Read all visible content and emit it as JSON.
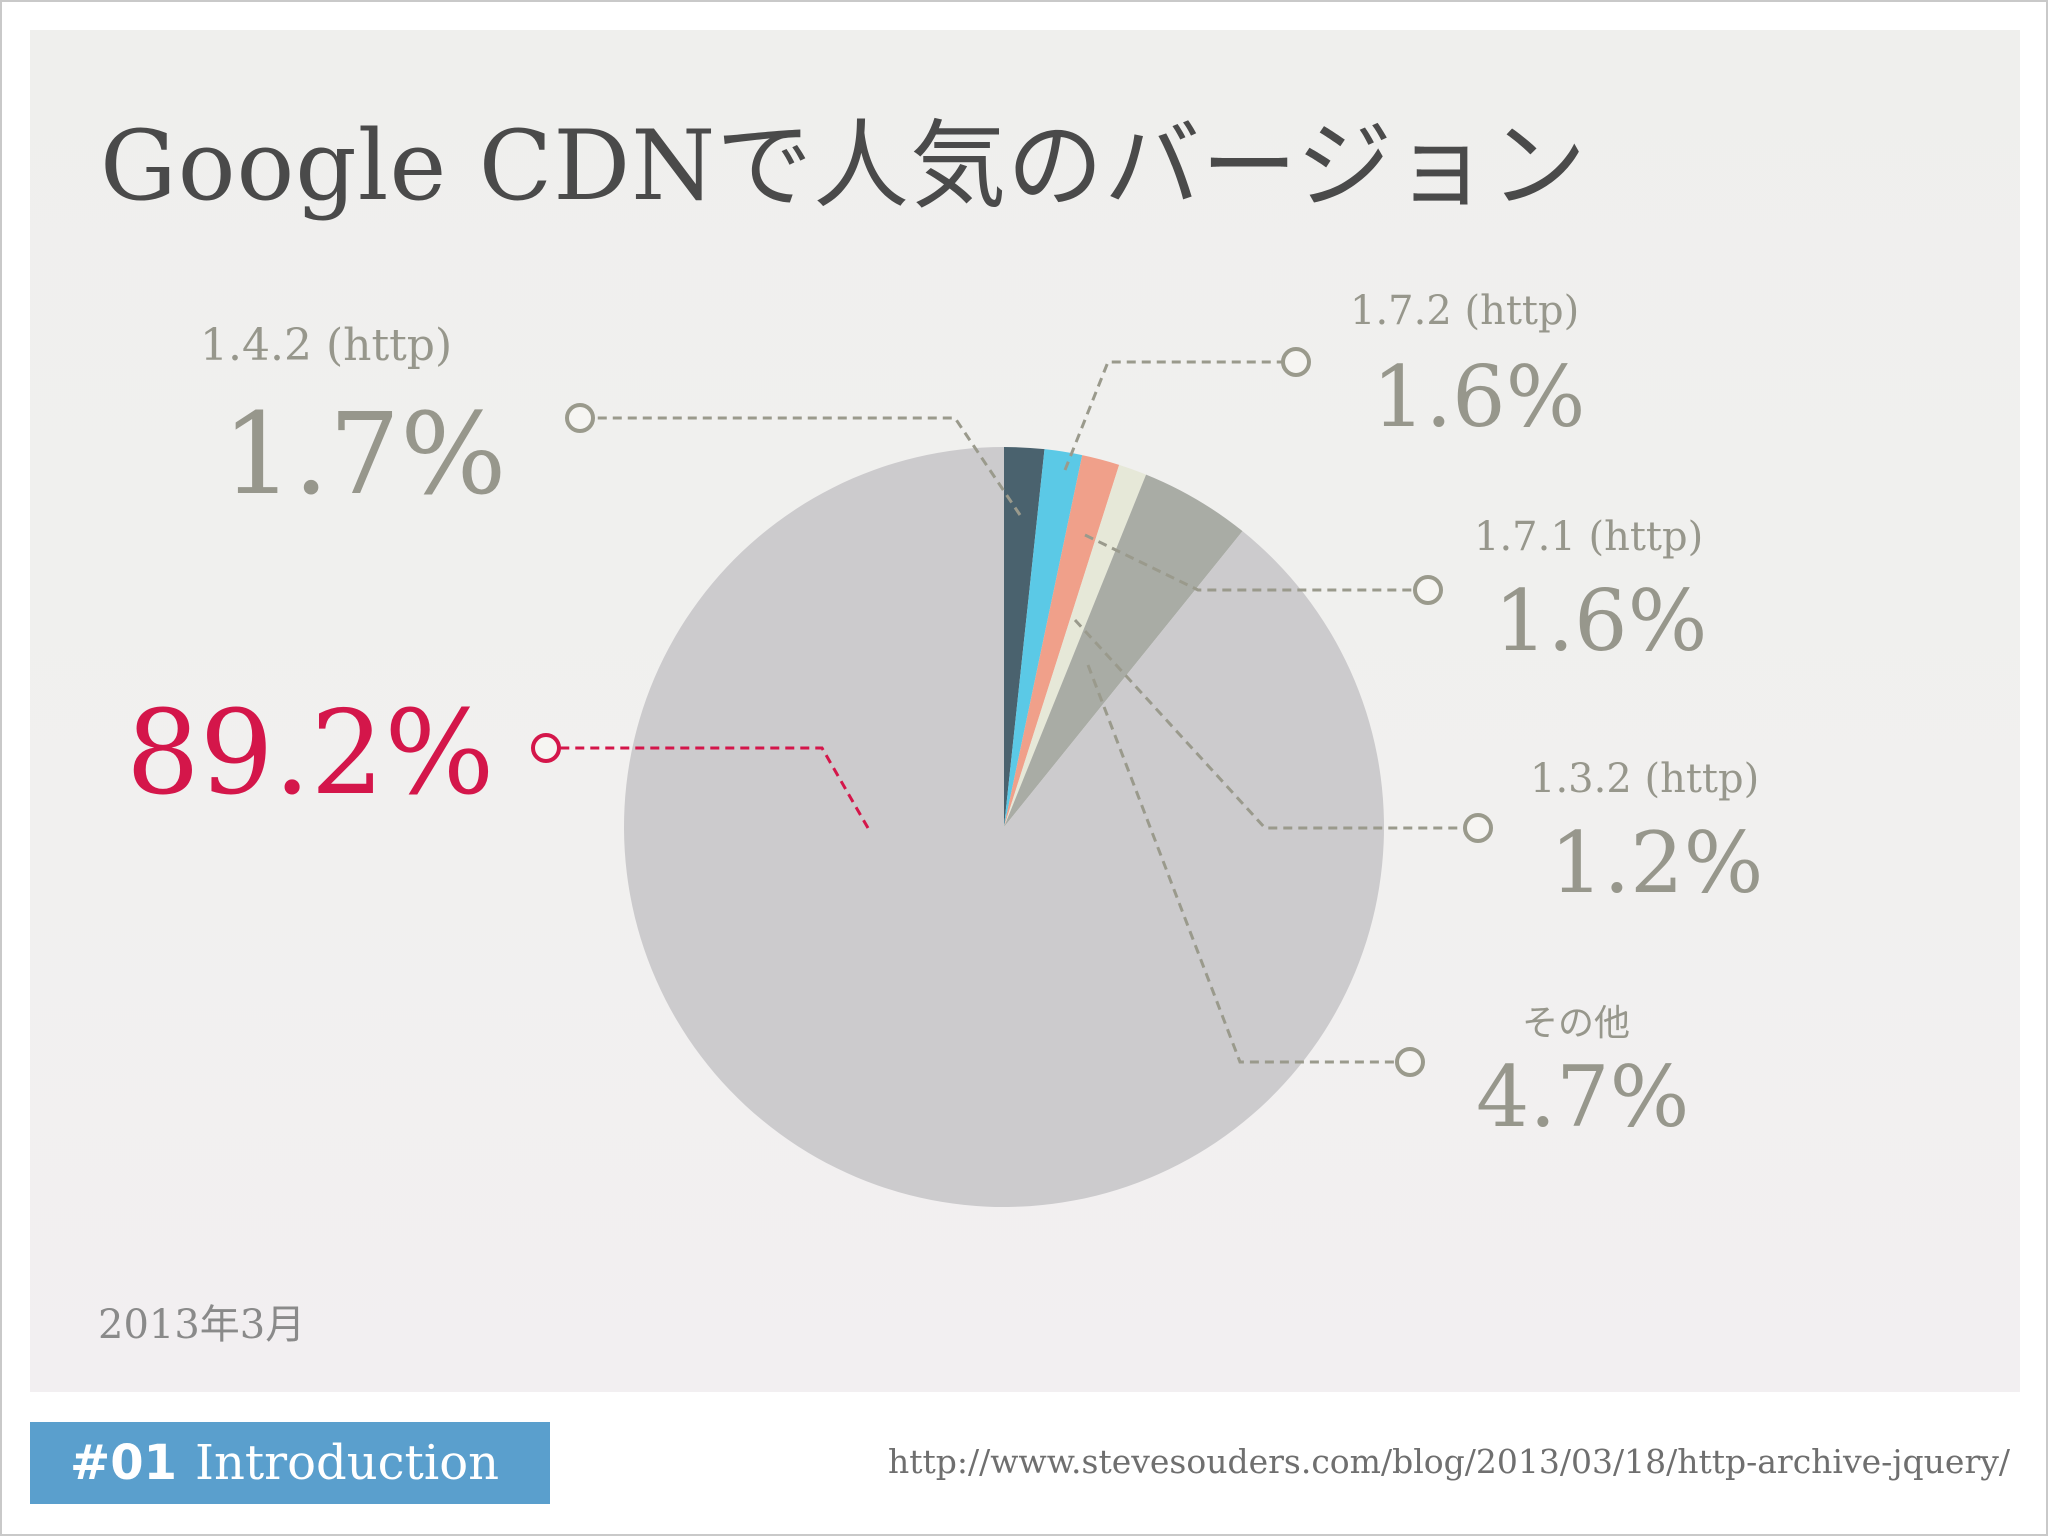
{
  "slide": {
    "title": "Google CDNで人気のバージョン",
    "date_note": "2013年3月",
    "section_number": "#01",
    "section_name": "Introduction",
    "source_url": "http://www.stevesouders.com/blog/2013/03/18/http-archive-jquery/"
  },
  "colors": {
    "highlight": "#d4164a",
    "label": "#97978c",
    "leader": "#9a9a8c"
  },
  "chart_data": {
    "type": "pie",
    "start_angle_deg": 0,
    "direction": "clockwise",
    "slices": [
      {
        "id": "s1",
        "label": "",
        "value": 1.7,
        "color": "#4a626e"
      },
      {
        "id": "s2",
        "label": "",
        "value": 1.6,
        "color": "#5bc9e6"
      },
      {
        "id": "s3",
        "label": "",
        "value": 1.6,
        "color": "#f0a08a"
      },
      {
        "id": "s4",
        "label": "",
        "value": 1.2,
        "color": "#e6e8d8"
      },
      {
        "id": "s5",
        "label": "",
        "value": 4.7,
        "color": "#a9aca5"
      },
      {
        "id": "s6",
        "label": "",
        "value": 89.2,
        "color": "#cccbcd"
      }
    ],
    "labels": [
      {
        "name": "1.4.2 (http)",
        "value_text": "1.7%"
      },
      {
        "name": "1.7.2 (http)",
        "value_text": "1.6%"
      },
      {
        "name": "1.7.1 (http)",
        "value_text": "1.6%"
      },
      {
        "name": "1.3.2 (http)",
        "value_text": "1.2%"
      },
      {
        "name": "その他",
        "value_text": "4.7%"
      },
      {
        "name": "",
        "value_text": "89.2%"
      }
    ]
  }
}
